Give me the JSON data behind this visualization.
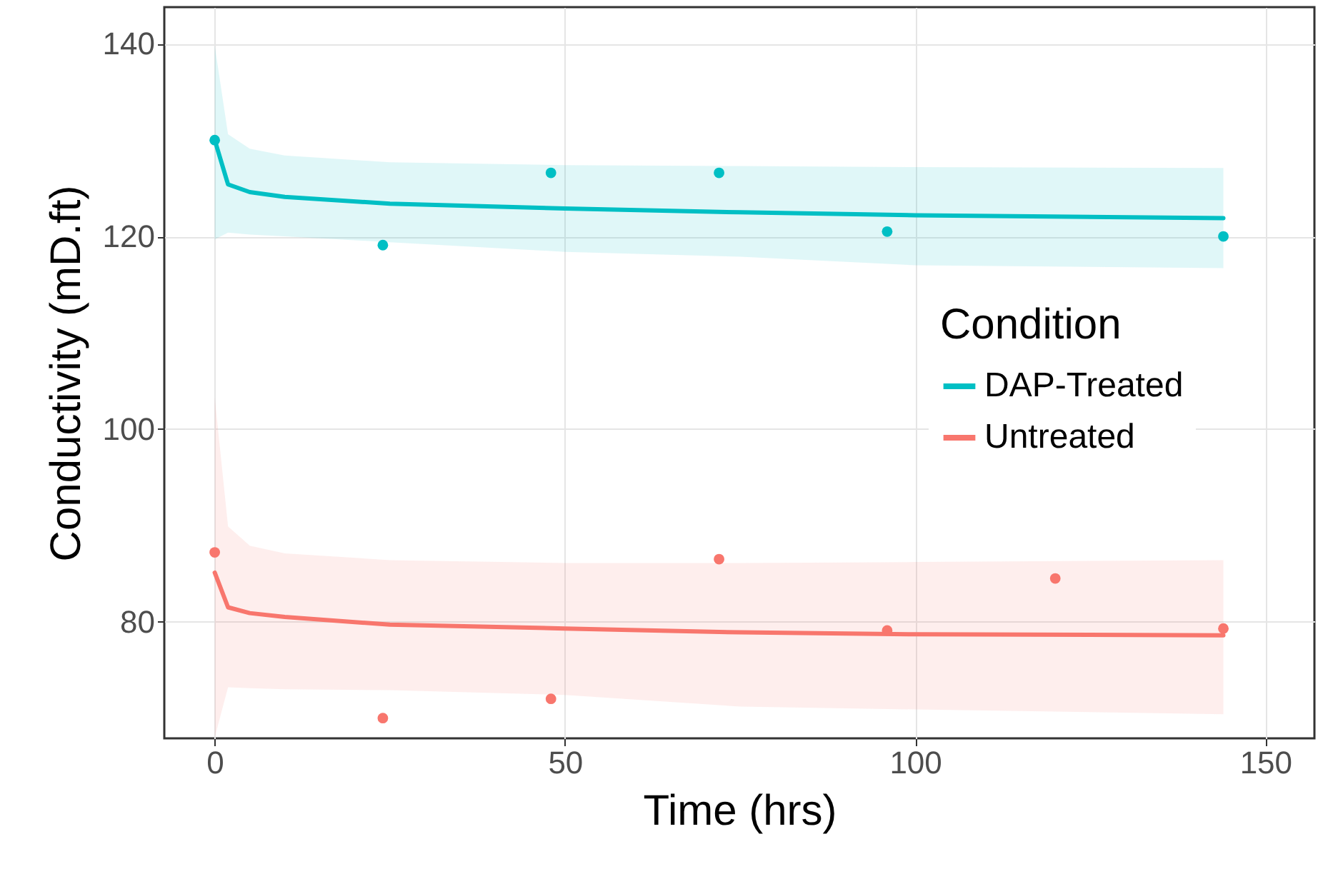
{
  "chart_data": {
    "type": "line",
    "xlabel": "Time (hrs)",
    "ylabel": "Conductivity (mD.ft)",
    "legend_title": "Condition",
    "xlim": [
      -7.2,
      157
    ],
    "ylim": [
      67.9,
      143.8
    ],
    "xticks": [
      0,
      50,
      100,
      150
    ],
    "yticks": [
      80,
      100,
      120,
      140
    ],
    "grid": true,
    "legend": "right",
    "line_style": "solid",
    "series": [
      {
        "name": "DAP-Treated",
        "color": "#00bfc4",
        "x": [
          0,
          1.9,
          5,
          10,
          25,
          50,
          75,
          100,
          144
        ],
        "values": [
          130.0,
          125.4,
          124.6,
          124.1,
          123.4,
          122.9,
          122.5,
          122.2,
          121.9
        ],
        "lower": [
          119.7,
          120.4,
          120.2,
          120.0,
          119.4,
          118.4,
          117.9,
          117.0,
          116.7
        ],
        "upper": [
          139.8,
          130.6,
          129.1,
          128.4,
          127.7,
          127.4,
          127.3,
          127.2,
          127.1
        ]
      },
      {
        "name": "Untreated",
        "color": "#f8766d",
        "x": [
          0,
          1.9,
          5,
          10,
          25,
          50,
          75,
          100,
          144
        ],
        "values": [
          85.1,
          81.5,
          80.9,
          80.5,
          79.7,
          79.3,
          78.9,
          78.7,
          78.6
        ],
        "lower": [
          68.0,
          73.2,
          73.1,
          73.0,
          72.9,
          72.4,
          71.2,
          70.9,
          70.4
        ],
        "upper": [
          103.3,
          89.9,
          87.9,
          87.1,
          86.4,
          86.1,
          86.1,
          86.2,
          86.4
        ]
      },
      {
        "type": "scatter",
        "color": "#00bfc4",
        "marker": "circle",
        "x": [
          0,
          24,
          48,
          72,
          96,
          144
        ],
        "values": [
          130.0,
          119.1,
          126.6,
          126.6,
          120.5,
          120.0
        ]
      },
      {
        "type": "scatter",
        "color": "#f8766d",
        "marker": "circle",
        "x": [
          0,
          24,
          48,
          72,
          96,
          120,
          144
        ],
        "values": [
          87.2,
          70.0,
          72.0,
          86.5,
          79.1,
          84.5,
          79.3
        ]
      }
    ]
  }
}
